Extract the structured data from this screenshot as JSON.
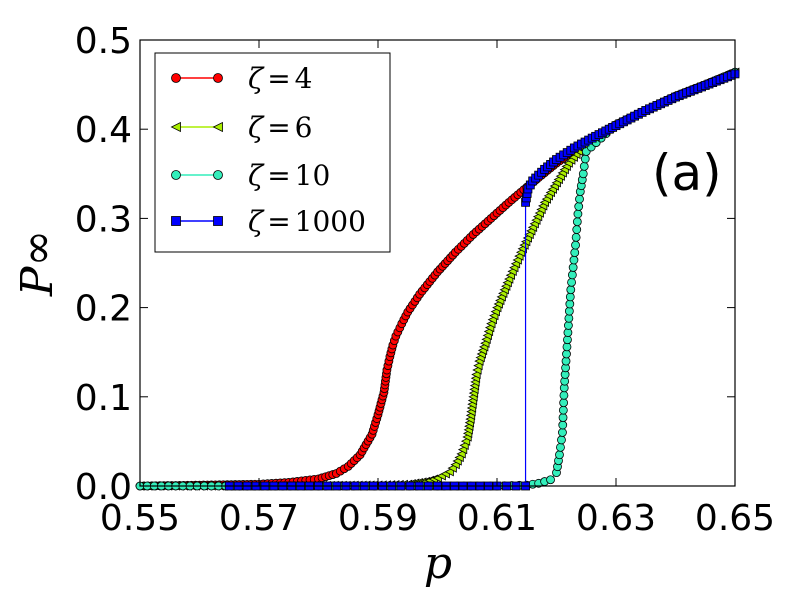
{
  "chart_data": {
    "type": "line",
    "panel_label": "(a)",
    "xlabel": "p",
    "ylabel": "P∞",
    "xlim": [
      0.55,
      0.65
    ],
    "ylim": [
      0.0,
      0.5
    ],
    "xticks": [
      0.55,
      0.57,
      0.59,
      0.61,
      0.63,
      0.65
    ],
    "xtick_labels": [
      "0.55",
      "0.57",
      "0.59",
      "0.61",
      "0.63",
      "0.65"
    ],
    "yticks": [
      0.0,
      0.1,
      0.2,
      0.3,
      0.4,
      0.5
    ],
    "ytick_labels": [
      "0.0",
      "0.1",
      "0.2",
      "0.3",
      "0.4",
      "0.5"
    ],
    "legend_position": "top-left",
    "series": [
      {
        "name": "ζ = 4",
        "legend_zeta": "ζ",
        "legend_value": "4",
        "color": "#ff0000",
        "marker": "circle",
        "x": [
          0.55,
          0.56,
          0.57,
          0.575,
          0.58,
          0.583,
          0.585,
          0.587,
          0.589,
          0.59,
          0.591,
          0.5915,
          0.592,
          0.5925,
          0.593,
          0.594,
          0.595,
          0.597,
          0.6,
          0.603,
          0.606,
          0.609,
          0.612,
          0.615,
          0.62,
          0.625,
          0.63,
          0.635,
          0.64,
          0.645,
          0.65
        ],
        "y": [
          0.0,
          0.001,
          0.002,
          0.004,
          0.008,
          0.014,
          0.022,
          0.035,
          0.058,
          0.08,
          0.105,
          0.13,
          0.145,
          0.158,
          0.168,
          0.182,
          0.195,
          0.215,
          0.24,
          0.262,
          0.282,
          0.3,
          0.318,
          0.335,
          0.362,
          0.385,
          0.405,
          0.421,
          0.437,
          0.45,
          0.464
        ]
      },
      {
        "name": "ζ = 6",
        "legend_zeta": "ζ",
        "legend_value": "6",
        "color": "#aaee00",
        "marker": "triangle-left",
        "x": [
          0.55,
          0.57,
          0.59,
          0.595,
          0.598,
          0.6,
          0.602,
          0.603,
          0.604,
          0.605,
          0.6055,
          0.606,
          0.6065,
          0.607,
          0.608,
          0.609,
          0.61,
          0.612,
          0.614,
          0.616,
          0.618,
          0.62,
          0.622,
          0.625,
          0.63,
          0.635,
          0.64,
          0.645,
          0.65
        ],
        "y": [
          0.0,
          0.0,
          0.001,
          0.002,
          0.005,
          0.009,
          0.016,
          0.024,
          0.036,
          0.055,
          0.075,
          0.1,
          0.125,
          0.14,
          0.16,
          0.182,
          0.2,
          0.232,
          0.262,
          0.29,
          0.318,
          0.34,
          0.362,
          0.385,
          0.405,
          0.421,
          0.437,
          0.45,
          0.464
        ]
      },
      {
        "name": "ζ = 10",
        "legend_zeta": "ζ",
        "legend_value": "10",
        "color": "#33eebb",
        "marker": "circle",
        "x": [
          0.55,
          0.58,
          0.6,
          0.61,
          0.615,
          0.617,
          0.619,
          0.62,
          0.6205,
          0.621,
          0.6213,
          0.6216,
          0.622,
          0.6224,
          0.6228,
          0.6232,
          0.6236,
          0.624,
          0.6245,
          0.625,
          0.63,
          0.635,
          0.64,
          0.645,
          0.65
        ],
        "y": [
          0.0,
          0.0,
          0.0,
          0.0,
          0.001,
          0.003,
          0.007,
          0.015,
          0.035,
          0.06,
          0.11,
          0.14,
          0.18,
          0.22,
          0.245,
          0.27,
          0.305,
          0.33,
          0.35,
          0.375,
          0.405,
          0.421,
          0.437,
          0.45,
          0.464
        ]
      },
      {
        "name": "ζ = 1000",
        "legend_zeta": "ζ",
        "legend_value": "1000",
        "color": "#0000ff",
        "marker": "square",
        "x": [
          0.565,
          0.58,
          0.6,
          0.61,
          0.6148,
          0.6148,
          0.6152,
          0.616,
          0.618,
          0.62,
          0.623,
          0.626,
          0.63,
          0.635,
          0.64,
          0.645,
          0.65
        ],
        "y": [
          0.0,
          0.0,
          0.0,
          0.0,
          0.0,
          0.318,
          0.333,
          0.342,
          0.355,
          0.366,
          0.379,
          0.39,
          0.404,
          0.421,
          0.436,
          0.449,
          0.462
        ]
      }
    ]
  }
}
